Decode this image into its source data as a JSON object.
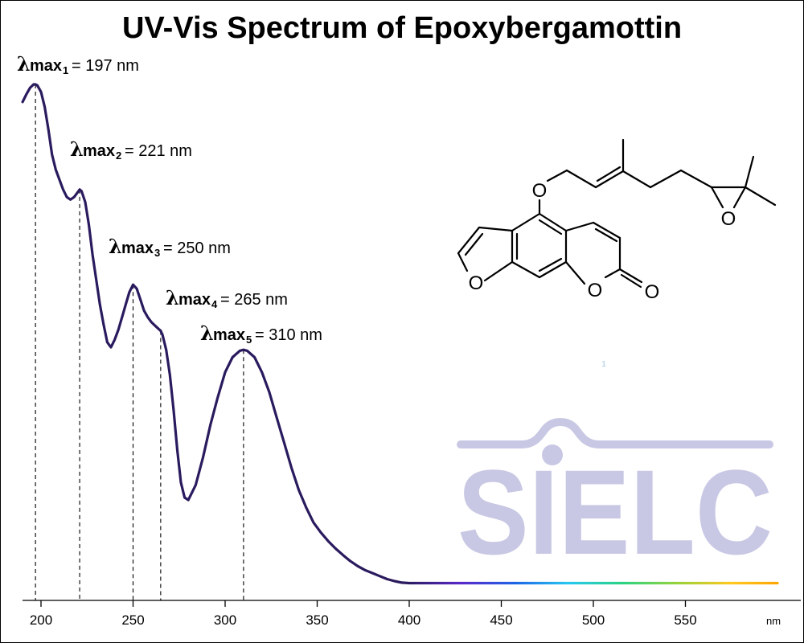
{
  "chart_data": {
    "type": "line",
    "title": "UV-Vis Spectrum of Epoxybergamottin",
    "xunit": "nm",
    "xlim": [
      190,
      1000
    ],
    "xticks": [
      200,
      250,
      300,
      350,
      400,
      450,
      500,
      550
    ],
    "series": [
      {
        "x": [
          190,
          192,
          194,
          196,
          197,
          198,
          200,
          202,
          204,
          206,
          208,
          210,
          212,
          214,
          216,
          218,
          220,
          221,
          222,
          224,
          226,
          228,
          230,
          232,
          234,
          236,
          238,
          240,
          242,
          244,
          246,
          248,
          250,
          252,
          254,
          256,
          258,
          260,
          262,
          264,
          265,
          266,
          268,
          270,
          272,
          274,
          276,
          278,
          280,
          284,
          288,
          292,
          296,
          300,
          304,
          308,
          310,
          312,
          316,
          320,
          324,
          328,
          332,
          336,
          340,
          344,
          348,
          352,
          356,
          360,
          364,
          368,
          372,
          376,
          380,
          384,
          388,
          392,
          396,
          400,
          450,
          500,
          550,
          600
        ],
        "y": [
          0.965,
          0.98,
          0.993,
          1.0,
          1.0,
          0.998,
          0.985,
          0.955,
          0.91,
          0.86,
          0.83,
          0.81,
          0.79,
          0.775,
          0.77,
          0.775,
          0.785,
          0.79,
          0.787,
          0.765,
          0.72,
          0.66,
          0.61,
          0.56,
          0.52,
          0.485,
          0.475,
          0.49,
          0.51,
          0.535,
          0.56,
          0.585,
          0.6,
          0.592,
          0.57,
          0.548,
          0.535,
          0.525,
          0.518,
          0.511,
          0.508,
          0.5,
          0.47,
          0.42,
          0.35,
          0.27,
          0.205,
          0.175,
          0.17,
          0.2,
          0.255,
          0.32,
          0.375,
          0.425,
          0.455,
          0.468,
          0.47,
          0.468,
          0.455,
          0.425,
          0.385,
          0.335,
          0.285,
          0.235,
          0.19,
          0.155,
          0.125,
          0.105,
          0.088,
          0.073,
          0.06,
          0.048,
          0.038,
          0.03,
          0.024,
          0.018,
          0.012,
          0.008,
          0.005,
          0.004,
          0.004,
          0.004,
          0.004,
          0.004
        ],
        "color": "#2a1a5e"
      }
    ],
    "spectrum_colors": [
      "#2a1a5e",
      "#5a28c8",
      "#1e64e6",
      "#28c8f0",
      "#2ad282",
      "#96d23c",
      "#ffc81e",
      "#ffa000"
    ],
    "annotations": [
      {
        "label": "max",
        "sub": "1",
        "value": "= 197 nm",
        "x": 197
      },
      {
        "label": "max",
        "sub": "2",
        "value": "= 221 nm",
        "x": 221
      },
      {
        "label": "max",
        "sub": "3",
        "value": "= 250 nm",
        "x": 250
      },
      {
        "label": "max",
        "sub": "4",
        "value": "= 265 nm",
        "x": 265
      },
      {
        "label": "max",
        "sub": "5",
        "value": "= 310 nm",
        "x": 310
      }
    ],
    "grid": false,
    "legend": "none"
  },
  "symbols": {
    "lambda": "λ"
  },
  "molecule": {
    "atoms": [
      "O",
      "O",
      "O",
      "O",
      "O"
    ]
  },
  "watermark": {
    "text": "SIELC",
    "color": "#c8c8e4"
  },
  "footnote": "1"
}
